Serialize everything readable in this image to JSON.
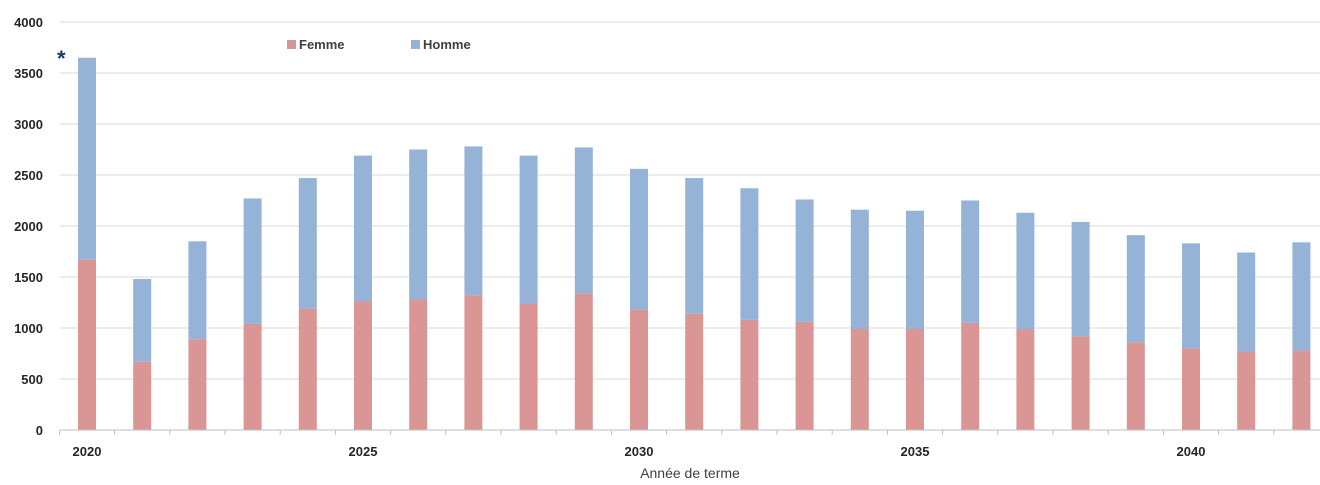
{
  "chart_data": {
    "type": "bar",
    "stacked": true,
    "title": "",
    "xlabel": "Année de terme",
    "ylabel": "",
    "ylim": [
      0,
      4000
    ],
    "yticks": [
      "0",
      "500",
      "1000",
      "1500",
      "2000",
      "2500",
      "3000",
      "3500",
      "4000"
    ],
    "x": [
      2020,
      2021,
      2022,
      2023,
      2024,
      2025,
      2026,
      2027,
      2028,
      2029,
      2030,
      2031,
      2032,
      2033,
      2034,
      2035,
      2036,
      2037,
      2038,
      2039,
      2040,
      2041,
      2042
    ],
    "xtick_labels": [
      "2020",
      "2025",
      "2030",
      "2035",
      "2040"
    ],
    "series": [
      {
        "name": "Femme",
        "color": "#d99694",
        "values": [
          1670,
          670,
          890,
          1040,
          1190,
          1260,
          1280,
          1320,
          1240,
          1340,
          1180,
          1140,
          1080,
          1060,
          990,
          990,
          1050,
          990,
          920,
          860,
          800,
          770,
          780
        ]
      },
      {
        "name": "Homme",
        "color": "#95b3d7",
        "values": [
          1980,
          810,
          960,
          1230,
          1280,
          1430,
          1470,
          1460,
          1450,
          1430,
          1380,
          1330,
          1290,
          1200,
          1170,
          1160,
          1200,
          1140,
          1120,
          1050,
          1030,
          970,
          1060
        ]
      }
    ],
    "legend_position": "top-left",
    "grid": true,
    "annotation": "*"
  }
}
